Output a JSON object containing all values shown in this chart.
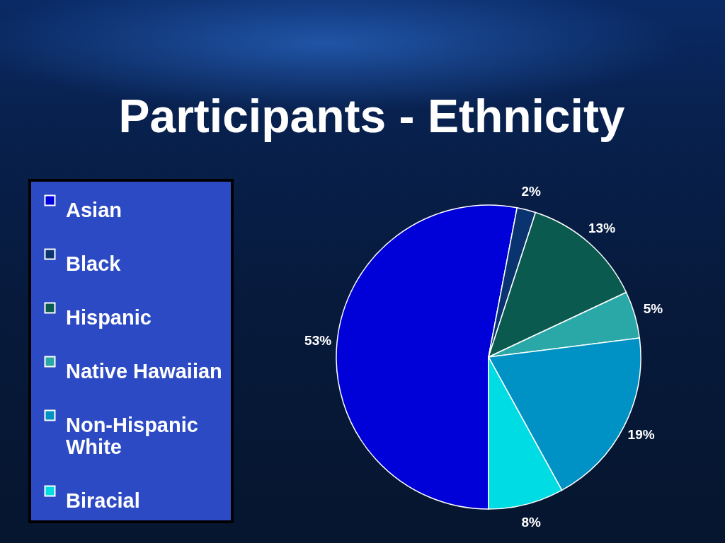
{
  "chart_data": {
    "type": "pie",
    "title": "Participants - Ethnicity",
    "categories": [
      "Asian",
      "Black",
      "Hispanic",
      "Native Hawaiian",
      "Non-Hispanic White",
      "Biracial"
    ],
    "values": [
      53,
      2,
      13,
      5,
      19,
      8
    ],
    "colors": [
      "#0000d8",
      "#0a3470",
      "#0a5a50",
      "#2aa8a8",
      "#0092c4",
      "#00dce4"
    ],
    "value_labels": [
      "53%",
      "2%",
      "13%",
      "5%",
      "19%",
      "8%"
    ],
    "legend": "left"
  }
}
